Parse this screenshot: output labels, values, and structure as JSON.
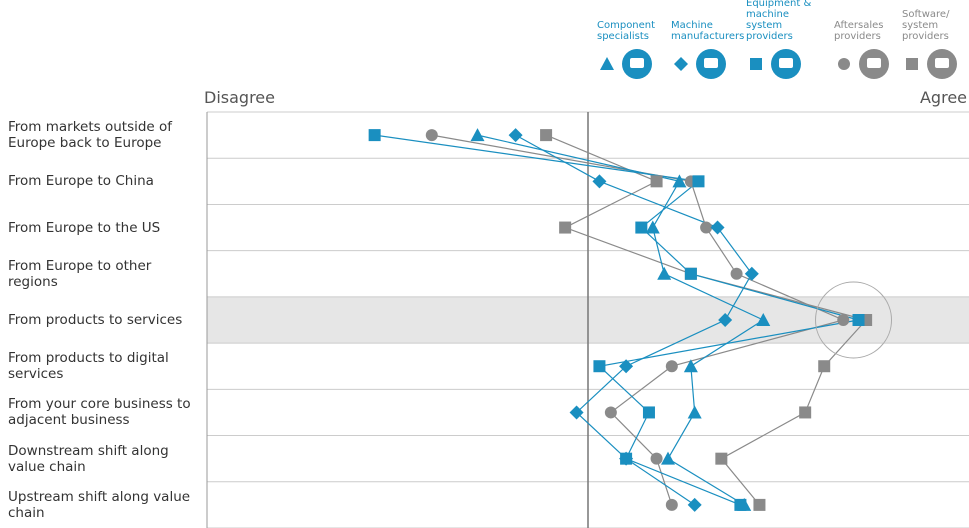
{
  "chart_data": {
    "type": "dot-profile",
    "x_label_left": "Disagree",
    "x_label_right": "Agree",
    "categories": [
      "From markets outside of Europe back to Europe",
      "From Europe to China",
      "From Europe to the US",
      "From Europe to other regions",
      "From products to services",
      "From products to digital services",
      "From your core business to adjacent business",
      "Downstream shift along value chain",
      "Upstream shift along value chain"
    ],
    "xlim": [
      -100,
      100
    ],
    "series": [
      {
        "name": "Component specialists",
        "color": "#1a8fc0",
        "marker": "triangle",
        "values": [
          -29,
          24,
          17,
          20,
          46,
          27,
          28,
          21,
          41
        ]
      },
      {
        "name": "Machine manufacturers",
        "color": "#1a8fc0",
        "marker": "diamond",
        "values": [
          -19,
          3,
          34,
          43,
          36,
          10,
          -3,
          10,
          28
        ]
      },
      {
        "name": "Equipment & machine system providers",
        "color": "#1a8fc0",
        "marker": "square",
        "values": [
          -56,
          29,
          14,
          27,
          71,
          3,
          16,
          10,
          40
        ]
      },
      {
        "name": "Aftersales providers",
        "color": "#8a8a8a",
        "marker": "circle",
        "values": [
          -41,
          27,
          31,
          39,
          67,
          22,
          6,
          18,
          22
        ]
      },
      {
        "name": "Software/ system providers",
        "color": "#8a8a8a",
        "marker": "square",
        "values": [
          -11,
          18,
          -6,
          27,
          73,
          62,
          57,
          35,
          45
        ]
      }
    ]
  }
}
